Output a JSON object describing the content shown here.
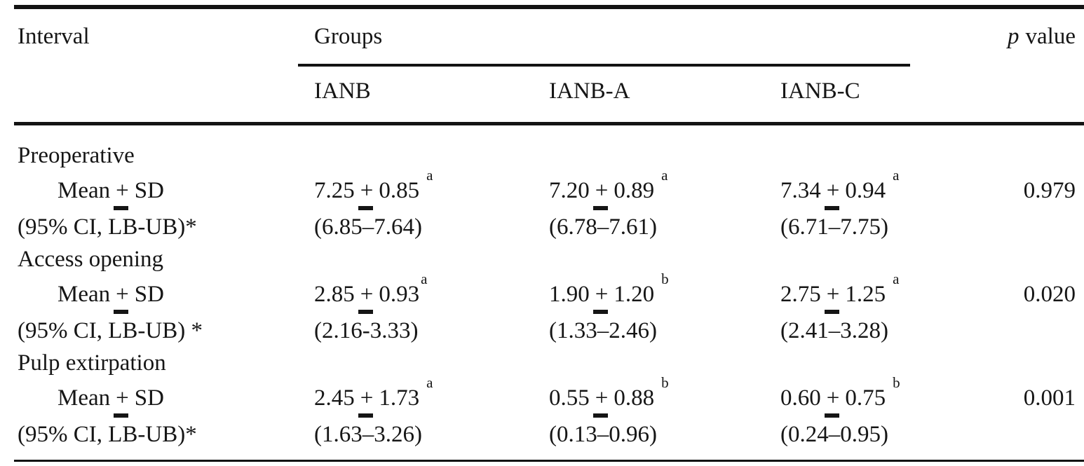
{
  "symbols": {
    "plus": "+"
  },
  "header": {
    "interval": "Interval",
    "groups": "Groups",
    "p_italic": "p",
    "p_rest": "value",
    "columns": [
      "IANB",
      "IANB-A",
      "IANB-C"
    ]
  },
  "sections": [
    {
      "label": "Preoperative",
      "mean_prefix": "Mean",
      "mean_suffix": "SD",
      "means": [
        {
          "v": "7.25",
          "sd": "0.85",
          "sup": "a"
        },
        {
          "v": "7.20",
          "sd": "0.89",
          "sup": "a"
        },
        {
          "v": "7.34",
          "sd": "0.94",
          "sup": "a"
        }
      ],
      "p": "0.979",
      "ci_label": "(95% CI, LB-UB)*",
      "cis": [
        "(6.85–7.64)",
        "(6.78–7.61)",
        "(6.71–7.75)"
      ]
    },
    {
      "label": "Access opening",
      "mean_prefix": "Mean",
      "mean_suffix": "SD",
      "means": [
        {
          "v": "2.85",
          "sd": "0.93",
          "sup": "a"
        },
        {
          "v": "1.90",
          "sd": "1.20",
          "sup": "b"
        },
        {
          "v": "2.75",
          "sd": "1.25",
          "sup": "a"
        }
      ],
      "p": "0.020",
      "ci_label": "(95% CI, LB-UB) *",
      "cis": [
        "(2.16-3.33)",
        "(1.33–2.46)",
        "(2.41–3.28)"
      ]
    },
    {
      "label": "Pulp extirpation",
      "mean_prefix": "Mean",
      "mean_suffix": "SD",
      "means": [
        {
          "v": "2.45",
          "sd": "1.73",
          "sup": "a"
        },
        {
          "v": "0.55",
          "sd": "0.88",
          "sup": "b"
        },
        {
          "v": "0.60",
          "sd": "0.75",
          "sup": "b"
        }
      ],
      "p": "0.001",
      "ci_label": "(95% CI, LB-UB)*",
      "cis": [
        "(1.63–3.26)",
        "(0.13–0.96)",
        "(0.24–0.95)"
      ]
    }
  ],
  "chart_data": {
    "type": "table",
    "columns": [
      "Interval",
      "IANB",
      "IANB-A",
      "IANB-C",
      "p value"
    ],
    "rows": [
      [
        "Preoperative",
        "",
        "",
        "",
        ""
      ],
      [
        "Mean ± SD",
        "7.25 ± 0.85 a",
        "7.20 ± 0.89 a",
        "7.34 ± 0.94 a",
        "0.979"
      ],
      [
        "(95% CI, LB-UB)*",
        "(6.85–7.64)",
        "(6.78–7.61)",
        "(6.71–7.75)",
        ""
      ],
      [
        "Access opening",
        "",
        "",
        "",
        ""
      ],
      [
        "Mean ± SD",
        "2.85 ± 0.93a",
        "1.90 ± 1.20 b",
        "2.75 ± 1.25 a",
        "0.020"
      ],
      [
        "(95% CI, LB-UB) *",
        "(2.16-3.33)",
        "(1.33–2.46)",
        "(2.41–3.28)",
        ""
      ],
      [
        "Pulp extirpation",
        "",
        "",
        "",
        ""
      ],
      [
        "Mean ± SD",
        "2.45 ± 1.73 a",
        "0.55 ± 0.88 b",
        "0.60 ± 0.75 b",
        "0.001"
      ],
      [
        "(95% CI, LB-UB)*",
        "(1.63–3.26)",
        "(0.13–0.96)",
        "(0.24–0.95)",
        ""
      ]
    ]
  }
}
